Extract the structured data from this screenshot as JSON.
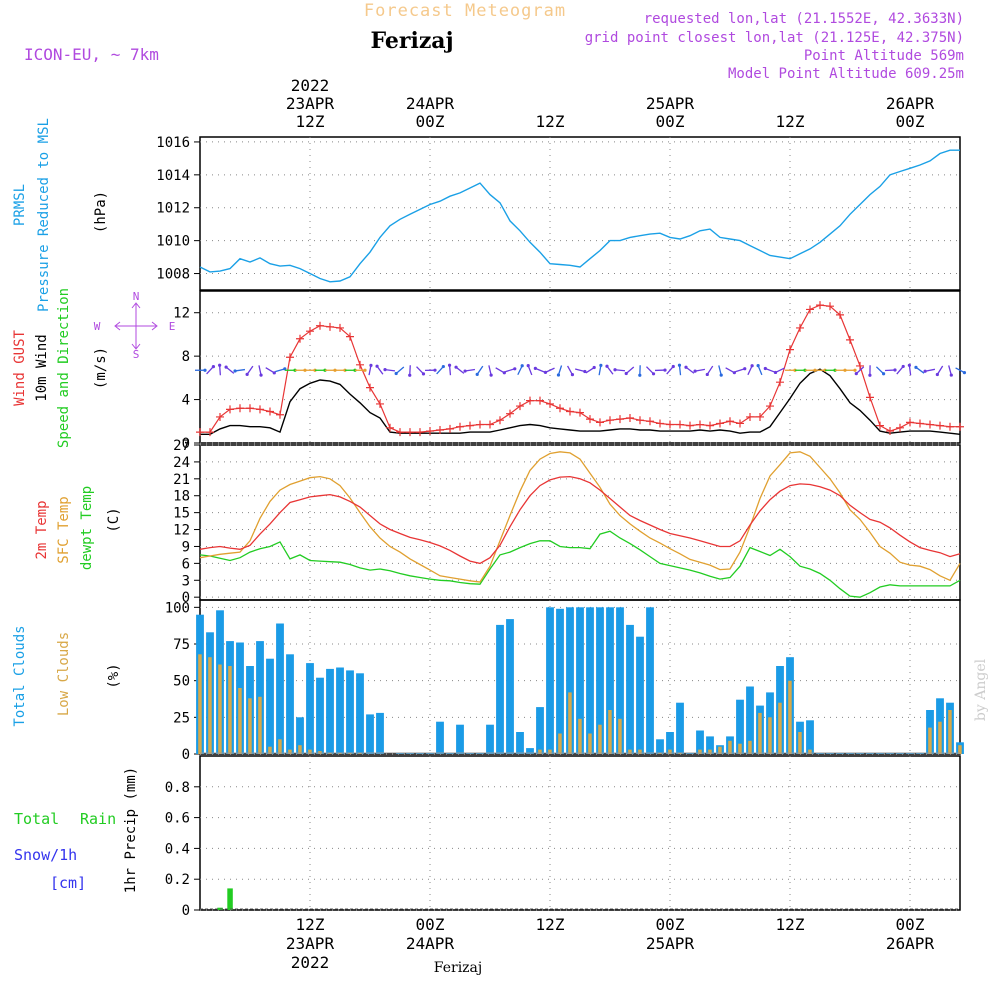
{
  "header": {
    "meteogram_title": "Forecast Meteogram",
    "location": "Ferizaj",
    "model": "ICON-EU, ~ 7km",
    "requested": "requested lon,lat (21.1552E, 42.3633N)",
    "grid_point": "grid point closest lon,lat (21.125E, 42.375N)",
    "point_altitude": "Point Altitude 569m",
    "model_altitude": "Model Point Altitude 609.25m",
    "watermark": "by Angel",
    "footer_location": "Ferizaj"
  },
  "colors": {
    "pressure": "#1aa0e6",
    "gust": "#e83535",
    "wind": "#000000",
    "temp": "#e83535",
    "sfc": "#e0a030",
    "dew": "#22cc22",
    "cloud_total": "#1a9be6",
    "cloud_low": "#d8a848",
    "rain": "#22cc22",
    "snow": "#3333ee",
    "label_purple": "#b04adf",
    "title_orange": "#f5c98c",
    "grid": "#888888"
  },
  "time_axis": {
    "top_labels": [
      {
        "hour": 12,
        "lines": [
          "2022",
          "23APR",
          "12Z"
        ]
      },
      {
        "hour": 24,
        "lines": [
          "24APR",
          "00Z"
        ]
      },
      {
        "hour": 36,
        "lines": [
          "12Z"
        ]
      },
      {
        "hour": 48,
        "lines": [
          "25APR",
          "00Z"
        ]
      },
      {
        "hour": 60,
        "lines": [
          "12Z"
        ]
      },
      {
        "hour": 72,
        "lines": [
          "26APR",
          "00Z"
        ]
      }
    ],
    "bottom_labels": [
      {
        "hour": 12,
        "lines": [
          "12Z",
          "23APR",
          "2022"
        ]
      },
      {
        "hour": 24,
        "lines": [
          "00Z",
          "24APR"
        ]
      },
      {
        "hour": 36,
        "lines": [
          "12Z"
        ]
      },
      {
        "hour": 48,
        "lines": [
          "00Z",
          "25APR"
        ]
      },
      {
        "hour": 60,
        "lines": [
          "12Z"
        ]
      },
      {
        "hour": 72,
        "lines": [
          "00Z",
          "26APR"
        ]
      }
    ],
    "start_hour": 1,
    "end_hour": 77
  },
  "panels": {
    "pressure": {
      "labels": [
        "PRMSL",
        "Pressure Reduced to MSL"
      ],
      "unit": "(hPa)"
    },
    "wind": {
      "labels": [
        "Wind GUST",
        "10m Wind",
        "Speed and Direction"
      ],
      "unit": "(m/s)",
      "compass": {
        "n": "N",
        "s": "S",
        "w": "W",
        "e": "E"
      }
    },
    "temp": {
      "labels": [
        "2m Temp",
        "SFC Temp",
        "dewpt Temp"
      ],
      "unit": "(C)"
    },
    "clouds": {
      "labels": [
        "Total Clouds",
        "Low Clouds"
      ],
      "unit": "(%)"
    },
    "precip": {
      "labels": [
        "Total",
        "Rain",
        "Snow/1h",
        "[cm]"
      ],
      "unit": "1hr Precip (mm)"
    }
  },
  "chart_data": [
    {
      "type": "line",
      "name": "pressure",
      "title": "PRMSL Pressure Reduced to MSL",
      "ylabel": "hPa",
      "ylim": [
        1007,
        1016.3
      ],
      "yticks": [
        1008,
        1010,
        1012,
        1014,
        1016
      ],
      "x": [
        1,
        2,
        3,
        4,
        5,
        6,
        7,
        8,
        9,
        10,
        11,
        12,
        13,
        14,
        15,
        16,
        17,
        18,
        19,
        20,
        21,
        22,
        23,
        24,
        25,
        26,
        27,
        28,
        29,
        30,
        31,
        32,
        33,
        34,
        35,
        36,
        37,
        38,
        39,
        40,
        41,
        42,
        43,
        44,
        45,
        46,
        47,
        48,
        49,
        50,
        51,
        52,
        53,
        54,
        55,
        56,
        57,
        58,
        59,
        60,
        61,
        62,
        63,
        64,
        65,
        66,
        67,
        68,
        69,
        70,
        71,
        72,
        73,
        74,
        75,
        76,
        77
      ],
      "series": [
        {
          "name": "PRMSL",
          "values": [
            1008.4,
            1008.1,
            1008.15,
            1008.3,
            1008.9,
            1008.7,
            1008.95,
            1008.6,
            1008.45,
            1008.5,
            1008.3,
            1008.0,
            1007.7,
            1007.5,
            1007.55,
            1007.8,
            1008.6,
            1009.3,
            1010.2,
            1010.9,
            1011.3,
            1011.6,
            1011.9,
            1012.2,
            1012.4,
            1012.7,
            1012.9,
            1013.2,
            1013.5,
            1012.8,
            1012.3,
            1011.2,
            1010.6,
            1009.9,
            1009.3,
            1008.6,
            1008.55,
            1008.5,
            1008.4,
            1008.9,
            1009.4,
            1010.0,
            1010.0,
            1010.2,
            1010.3,
            1010.4,
            1010.45,
            1010.2,
            1010.1,
            1010.3,
            1010.6,
            1010.7,
            1010.2,
            1010.1,
            1010.0,
            1009.7,
            1009.4,
            1009.1,
            1009.0,
            1008.9,
            1009.2,
            1009.5,
            1009.9,
            1010.4,
            1010.9,
            1011.6,
            1012.2,
            1012.8,
            1013.3,
            1014.0,
            1014.2,
            1014.4,
            1014.6,
            1014.85,
            1015.3,
            1015.5,
            1015.5
          ]
        }
      ]
    },
    {
      "type": "line",
      "name": "wind",
      "title": "Wind GUST / 10m Wind Speed and Direction",
      "ylabel": "m/s",
      "ylim": [
        0,
        14
      ],
      "yticks": [
        0,
        4,
        8,
        12
      ],
      "series": [
        {
          "name": "Wind GUST",
          "values": [
            1.0,
            1.0,
            2.4,
            3.1,
            3.2,
            3.2,
            3.1,
            2.9,
            2.6,
            7.9,
            9.6,
            10.3,
            10.8,
            10.7,
            10.6,
            9.8,
            7.2,
            5.1,
            3.6,
            1.4,
            1.0,
            1.0,
            1.0,
            1.1,
            1.2,
            1.3,
            1.5,
            1.6,
            1.7,
            1.7,
            2.1,
            2.7,
            3.4,
            3.9,
            3.9,
            3.6,
            3.2,
            2.9,
            2.8,
            2.2,
            1.9,
            2.1,
            2.2,
            2.3,
            2.1,
            2.0,
            1.8,
            1.7,
            1.7,
            1.6,
            1.7,
            1.6,
            1.8,
            2.0,
            1.8,
            2.4,
            2.4,
            3.4,
            5.6,
            8.6,
            10.6,
            12.3,
            12.7,
            12.6,
            11.8,
            9.5,
            7.1,
            4.2,
            1.6,
            1.1,
            1.4,
            1.9,
            1.8,
            1.7,
            1.6,
            1.5,
            1.5
          ]
        },
        {
          "name": "10m Wind",
          "values": [
            0.8,
            0.8,
            1.3,
            1.6,
            1.6,
            1.5,
            1.5,
            1.4,
            1.0,
            3.8,
            5.0,
            5.5,
            5.8,
            5.7,
            5.4,
            4.5,
            3.7,
            2.8,
            2.3,
            1.0,
            0.9,
            0.9,
            0.9,
            0.9,
            0.9,
            0.9,
            0.9,
            1.0,
            1.0,
            1.0,
            1.2,
            1.4,
            1.6,
            1.7,
            1.6,
            1.4,
            1.3,
            1.2,
            1.1,
            1.1,
            1.1,
            1.2,
            1.3,
            1.3,
            1.2,
            1.2,
            1.1,
            1.1,
            1.1,
            1.1,
            1.2,
            1.1,
            1.2,
            1.1,
            0.9,
            1.0,
            1.0,
            1.5,
            2.8,
            4.1,
            5.5,
            6.4,
            6.8,
            6.2,
            5.0,
            3.7,
            3.0,
            2.1,
            1.1,
            0.9,
            1.0,
            1.1,
            1.1,
            1.1,
            1.0,
            0.9,
            0.8
          ]
        }
      ]
    },
    {
      "type": "line",
      "name": "temperature",
      "title": "2m Temp / SFC Temp / dewpt Temp",
      "ylabel": "C",
      "ylim": [
        -0.5,
        27
      ],
      "yticks": [
        0,
        3,
        6,
        9,
        12,
        15,
        18,
        21,
        24,
        27
      ],
      "series": [
        {
          "name": "2m Temp",
          "values": [
            8.5,
            8.8,
            9.0,
            8.7,
            8.5,
            9.2,
            11.2,
            13.0,
            15.0,
            16.8,
            17.3,
            17.8,
            18.0,
            18.2,
            17.8,
            17.0,
            16.0,
            14.5,
            13.0,
            12.0,
            11.3,
            10.6,
            10.2,
            9.7,
            9.1,
            8.3,
            7.3,
            6.4,
            6.0,
            7.0,
            9.2,
            12.5,
            15.5,
            18.0,
            19.8,
            20.8,
            21.3,
            21.4,
            21.0,
            20.3,
            19.0,
            17.5,
            16.0,
            14.5,
            13.6,
            12.8,
            12.0,
            11.3,
            10.9,
            10.5,
            10.0,
            9.5,
            9.0,
            9.0,
            10.0,
            12.8,
            15.3,
            17.3,
            18.8,
            19.8,
            20.1,
            20.0,
            19.6,
            19.0,
            18.0,
            16.3,
            15.0,
            13.8,
            13.3,
            12.3,
            11.0,
            9.8,
            8.8,
            8.3,
            7.9,
            7.2,
            7.7
          ]
        },
        {
          "name": "SFC Temp",
          "values": [
            7.0,
            7.3,
            7.6,
            7.8,
            8.0,
            10.0,
            14.0,
            17.0,
            19.0,
            20.0,
            20.6,
            21.2,
            21.4,
            21.0,
            19.8,
            17.6,
            15.0,
            12.5,
            10.5,
            9.0,
            8.0,
            6.8,
            5.8,
            4.8,
            3.8,
            3.5,
            3.2,
            2.9,
            2.7,
            5.5,
            10.0,
            14.5,
            18.8,
            22.5,
            24.5,
            25.5,
            25.8,
            25.6,
            24.5,
            22.0,
            19.5,
            16.5,
            14.5,
            13.0,
            11.7,
            10.5,
            9.6,
            8.6,
            7.7,
            6.7,
            6.2,
            5.7,
            4.9,
            5.0,
            8.0,
            12.5,
            17.5,
            21.5,
            23.5,
            25.6,
            25.8,
            25.0,
            23.0,
            21.0,
            18.5,
            15.5,
            13.8,
            11.5,
            9.0,
            7.8,
            6.2,
            5.7,
            5.5,
            4.9,
            3.8,
            3.0,
            6.0
          ]
        },
        {
          "name": "dewpt Temp",
          "values": [
            7.5,
            7.3,
            6.9,
            6.5,
            7.0,
            8.0,
            8.6,
            9.0,
            9.8,
            6.8,
            7.5,
            6.5,
            6.4,
            6.3,
            6.2,
            5.8,
            5.2,
            4.8,
            5.0,
            4.7,
            4.2,
            3.8,
            3.5,
            3.2,
            3.0,
            2.9,
            2.6,
            2.4,
            2.3,
            5.0,
            7.5,
            8.0,
            8.8,
            9.5,
            10.0,
            10.0,
            9.0,
            8.8,
            8.8,
            8.6,
            11.2,
            11.7,
            10.5,
            9.5,
            8.4,
            7.2,
            6.0,
            5.6,
            5.2,
            4.8,
            4.3,
            3.7,
            3.2,
            3.5,
            5.5,
            8.8,
            8.1,
            7.4,
            8.5,
            7.2,
            5.5,
            5.0,
            4.2,
            3.0,
            1.5,
            0.2,
            0.0,
            0.8,
            1.8,
            2.2,
            2.0,
            2.0,
            2.0,
            2.0,
            2.0,
            2.0,
            3.0
          ]
        }
      ]
    },
    {
      "type": "bar",
      "name": "clouds",
      "title": "Total Clouds / Low Clouds",
      "ylabel": "%",
      "ylim": [
        0,
        105
      ],
      "yticks": [
        0,
        25,
        50,
        75,
        100
      ],
      "series": [
        {
          "name": "Total Clouds",
          "values": [
            95,
            83,
            98,
            77,
            76,
            60,
            77,
            65,
            89,
            68,
            25,
            62,
            52,
            58,
            59,
            57,
            55,
            27,
            28,
            0,
            1,
            1,
            1,
            1,
            22,
            1,
            20,
            1,
            1,
            20,
            88,
            92,
            15,
            4,
            32,
            100,
            99,
            100,
            100,
            100,
            100,
            100,
            100,
            88,
            80,
            100,
            10,
            15,
            35,
            1,
            16,
            12,
            6,
            12,
            37,
            46,
            33,
            42,
            60,
            66,
            22,
            23,
            1,
            1,
            1,
            1,
            1,
            1,
            1,
            1,
            1,
            1,
            1,
            30,
            38,
            35,
            8
          ]
        },
        {
          "name": "Low Clouds",
          "values": [
            68,
            66,
            61,
            60,
            45,
            38,
            39,
            5,
            10,
            3,
            6,
            3,
            2,
            1,
            1,
            1,
            1,
            0,
            0,
            0,
            0,
            0,
            0,
            0,
            0,
            0,
            0,
            0,
            0,
            0,
            0,
            0,
            0,
            0,
            3,
            3,
            14,
            42,
            24,
            14,
            20,
            30,
            24,
            3,
            3,
            0,
            1,
            3,
            1,
            0,
            3,
            3,
            5,
            9,
            7,
            9,
            28,
            25,
            35,
            50,
            15,
            3,
            0,
            0,
            0,
            0,
            0,
            0,
            0,
            0,
            0,
            0,
            0,
            18,
            22,
            30,
            6
          ]
        }
      ]
    },
    {
      "type": "bar",
      "name": "precip",
      "title": "1hr Precip",
      "ylabel": "mm",
      "ylim": [
        0,
        1.0
      ],
      "yticks": [
        0,
        0.2,
        0.4,
        0.6,
        0.8
      ],
      "series": [
        {
          "name": "Total Rain",
          "hours": [
            3,
            4
          ],
          "values": [
            0.015,
            0.14
          ]
        },
        {
          "name": "Snow/1h",
          "hours": [],
          "values": []
        }
      ]
    }
  ]
}
